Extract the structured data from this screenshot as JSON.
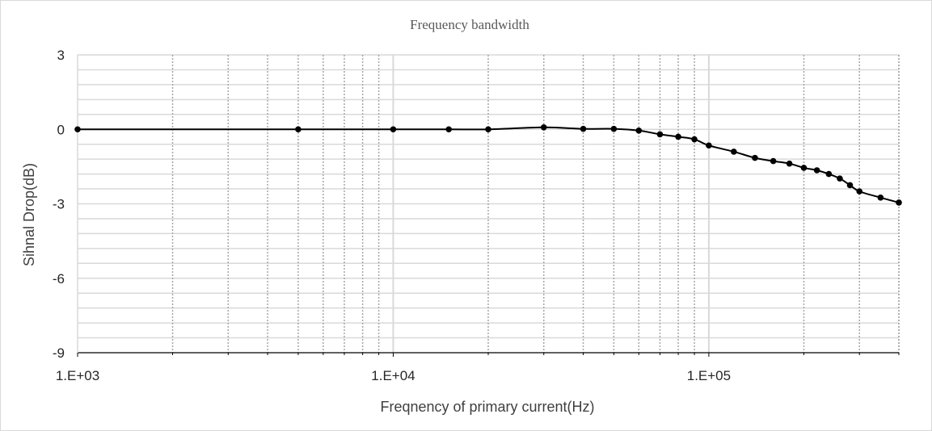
{
  "chart_data": {
    "type": "scatter",
    "title": "Frequency bandwidth",
    "xlabel": "Freqnency of primary current(Hz)",
    "ylabel": "Sihnal Drop(dB)",
    "x_scale": "log",
    "xlim": [
      1000,
      400000
    ],
    "ylim": [
      -9,
      3
    ],
    "x_ticks": [
      1000,
      10000,
      100000
    ],
    "x_tick_labels": [
      "1.E+03",
      "1.E+04",
      "1.E+05"
    ],
    "y_ticks": [
      3,
      0,
      -3,
      -6,
      -9
    ],
    "y_tick_labels": [
      "3",
      "0",
      "-3",
      "-6",
      "-9"
    ],
    "y_minor_step": 0.6,
    "grid": true,
    "legend": "none",
    "colors": {
      "line": "#000000",
      "major_grid": "#d9d9d9",
      "minor_grid": "#a6a6a6",
      "axis": "#000000"
    },
    "series": [
      {
        "x": [
          1000,
          5000,
          10000,
          15000,
          20000,
          30000,
          40000,
          50000,
          60000,
          70000,
          80000,
          90000,
          100000,
          120000,
          140000,
          160000,
          180000,
          200000,
          220000,
          240000,
          260000,
          280000,
          300000,
          350000,
          400000
        ],
        "y": [
          0,
          0,
          0,
          0,
          0,
          0.08,
          0.02,
          0.02,
          -0.05,
          -0.2,
          -0.3,
          -0.4,
          -0.65,
          -0.9,
          -1.15,
          -1.28,
          -1.38,
          -1.55,
          -1.65,
          -1.8,
          -1.98,
          -2.25,
          -2.5,
          -2.75,
          -2.95
        ]
      }
    ]
  }
}
